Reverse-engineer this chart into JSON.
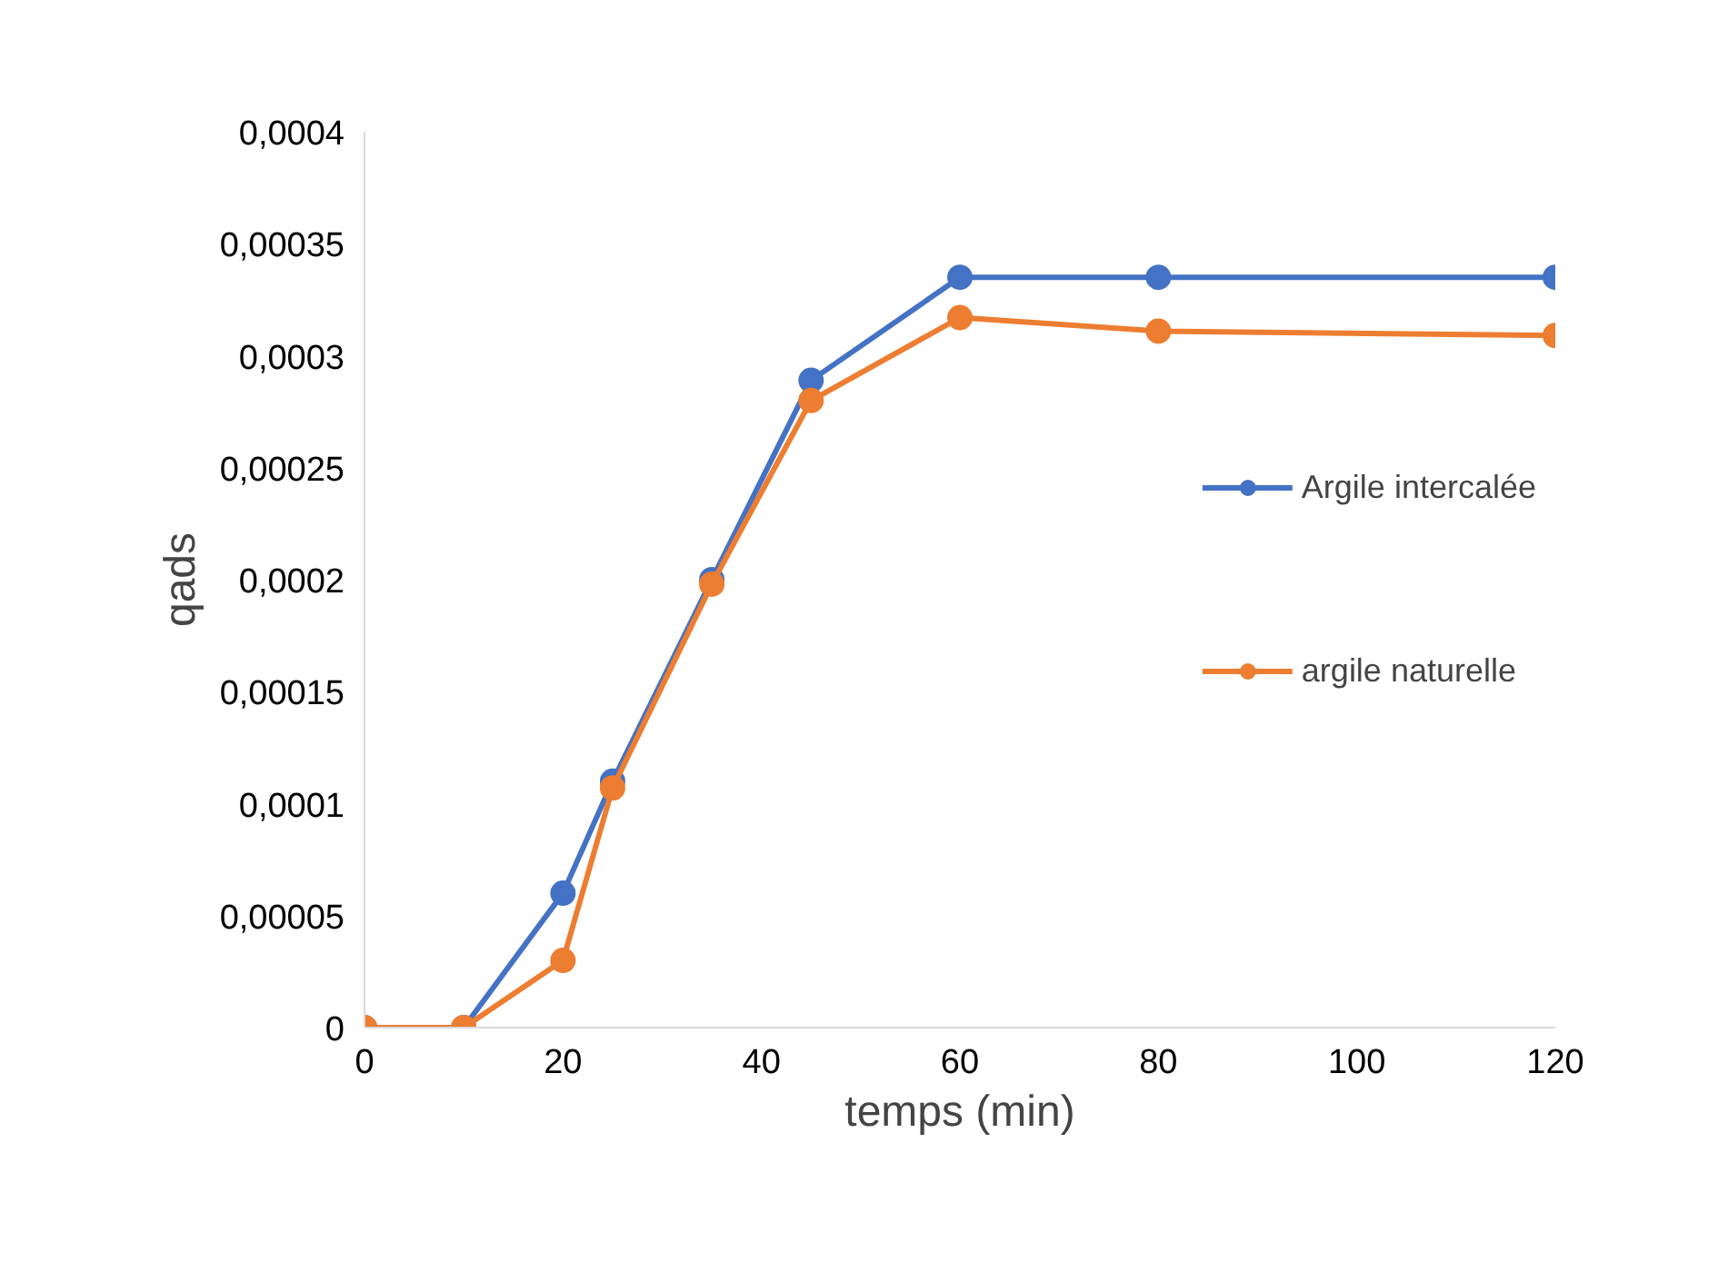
{
  "chart_data": {
    "type": "line",
    "xlabel": "temps (min)",
    "ylabel": "qads",
    "x": [
      0,
      10,
      20,
      25,
      35,
      45,
      60,
      80,
      120
    ],
    "series": [
      {
        "name": "Argile intercalée",
        "color": "#4472c4",
        "values": [
          0,
          0,
          6e-05,
          0.00011,
          0.0002,
          0.000289,
          0.000335,
          0.000335,
          0.000335
        ]
      },
      {
        "name": "argile naturelle",
        "color": "#ed7d31",
        "values": [
          0,
          0,
          3e-05,
          0.000107,
          0.000198,
          0.00028,
          0.000317,
          0.000311,
          0.000309
        ]
      }
    ],
    "xlim": [
      0,
      120
    ],
    "xticks": [
      0,
      20,
      40,
      60,
      80,
      100,
      120
    ],
    "ylim": [
      0,
      0.0004
    ],
    "yticks": [
      0,
      {
        "value": 5e-05,
        "label": "0,00005"
      },
      {
        "value": 0.0001,
        "label": "0,0001"
      },
      {
        "value": 0.00015,
        "label": "0,00015"
      },
      {
        "value": 0.0002,
        "label": "0,0002"
      },
      {
        "value": 0.00025,
        "label": "0,00025"
      },
      {
        "value": 0.0003,
        "label": "0,0003"
      },
      {
        "value": 0.00035,
        "label": "0,00035"
      },
      {
        "value": 0.0004,
        "label": "0,0004"
      }
    ],
    "grid": false,
    "legend": "right",
    "marker": "circle",
    "line_style": "solid"
  }
}
